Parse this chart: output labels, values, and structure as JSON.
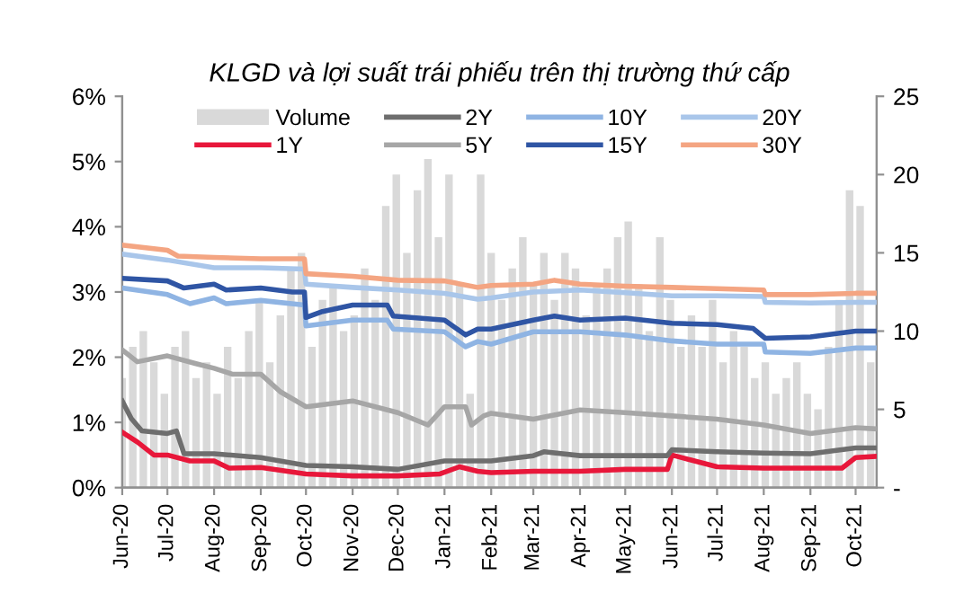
{
  "chart_data": {
    "type": "line",
    "title": "KLGD và lợi suất trái phiếu trên thị trường thứ cấp",
    "ylim": [
      0,
      6
    ],
    "yticks": [
      {
        "value": 0,
        "label": "0%"
      },
      {
        "value": 1,
        "label": "1%"
      },
      {
        "value": 2,
        "label": "2%"
      },
      {
        "value": 3,
        "label": "3%"
      },
      {
        "value": 4,
        "label": "4%"
      },
      {
        "value": 5,
        "label": "5%"
      },
      {
        "value": 6,
        "label": "6%"
      }
    ],
    "y2lim": [
      0,
      25
    ],
    "y2ticks": [
      {
        "value": 0,
        "label": "-"
      },
      5,
      10,
      15,
      20,
      25
    ],
    "xlim": [
      "2020-06-01",
      "2021-10-15"
    ],
    "xticks": [
      {
        "value": "2020-06-01",
        "label": "Jun-20"
      },
      {
        "value": "2020-07-01",
        "label": "Jul-20"
      },
      {
        "value": "2020-08-01",
        "label": "Aug-20"
      },
      {
        "value": "2020-09-01",
        "label": "Sep-20"
      },
      {
        "value": "2020-10-01",
        "label": "Oct-20"
      },
      {
        "value": "2020-11-01",
        "label": "Nov-20"
      },
      {
        "value": "2020-12-01",
        "label": "Dec-20"
      },
      {
        "value": "2021-01-01",
        "label": "Jan-21"
      },
      {
        "value": "2021-02-01",
        "label": "Feb-21"
      },
      {
        "value": "2021-03-01",
        "label": "Mar-21"
      },
      {
        "value": "2021-04-01",
        "label": "Apr-21"
      },
      {
        "value": "2021-05-01",
        "label": "May-21"
      },
      {
        "value": "2021-06-01",
        "label": "Jun-21"
      },
      {
        "value": "2021-07-01",
        "label": "Jul-21"
      },
      {
        "value": "2021-08-01",
        "label": "Aug-21"
      },
      {
        "value": "2021-09-01",
        "label": "Sep-21"
      },
      {
        "value": "2021-10-01",
        "label": "Oct-21"
      }
    ],
    "legend": "top",
    "grid": false,
    "marker": "none",
    "line_style": "solid",
    "series": [
      {
        "name": "Volume",
        "type": "bar",
        "axis": "y2",
        "color": "#d9d9d9",
        "x": [
          "2020-06-01",
          "2020-06-08",
          "2020-06-15",
          "2020-06-22",
          "2020-06-29",
          "2020-07-06",
          "2020-07-13",
          "2020-07-20",
          "2020-07-27",
          "2020-08-03",
          "2020-08-10",
          "2020-08-17",
          "2020-08-24",
          "2020-08-31",
          "2020-09-07",
          "2020-09-14",
          "2020-09-21",
          "2020-09-28",
          "2020-10-05",
          "2020-10-12",
          "2020-10-19",
          "2020-10-26",
          "2020-11-02",
          "2020-11-09",
          "2020-11-16",
          "2020-11-23",
          "2020-11-30",
          "2020-12-07",
          "2020-12-14",
          "2020-12-21",
          "2020-12-28",
          "2021-01-04",
          "2021-01-11",
          "2021-01-18",
          "2021-01-25",
          "2021-02-01",
          "2021-02-08",
          "2021-02-15",
          "2021-02-22",
          "2021-03-01",
          "2021-03-08",
          "2021-03-15",
          "2021-03-22",
          "2021-03-29",
          "2021-04-05",
          "2021-04-12",
          "2021-04-19",
          "2021-04-26",
          "2021-05-03",
          "2021-05-10",
          "2021-05-17",
          "2021-05-24",
          "2021-05-31",
          "2021-06-07",
          "2021-06-14",
          "2021-06-21",
          "2021-06-28",
          "2021-07-05",
          "2021-07-12",
          "2021-07-19",
          "2021-07-26",
          "2021-08-02",
          "2021-08-09",
          "2021-08-16",
          "2021-08-23",
          "2021-08-30",
          "2021-09-06",
          "2021-09-13",
          "2021-09-20",
          "2021-09-27",
          "2021-10-04",
          "2021-10-11"
        ],
        "values": [
          7,
          9,
          10,
          8,
          6,
          9,
          10,
          7,
          8,
          6,
          9,
          7,
          10,
          12,
          8,
          11,
          14,
          15,
          9,
          12,
          13,
          10,
          11,
          14,
          12,
          18,
          20,
          15,
          19,
          21,
          16,
          20,
          13,
          6,
          20,
          15,
          12,
          14,
          16,
          13,
          15,
          12,
          15,
          14,
          11,
          13,
          14,
          16,
          17,
          13,
          10,
          16,
          12,
          9,
          11,
          9,
          12,
          8,
          10,
          9,
          7,
          8,
          6,
          7,
          8,
          6,
          5,
          9,
          12,
          19,
          18,
          8
        ]
      },
      {
        "name": "1Y",
        "color": "#e8173a",
        "x": [
          "2020-06-01",
          "2020-06-11",
          "2020-06-22",
          "2020-07-01",
          "2020-07-16",
          "2020-08-01",
          "2020-08-11",
          "2020-09-01",
          "2020-10-01",
          "2020-11-01",
          "2020-12-01",
          "2020-12-29",
          "2021-01-11",
          "2021-01-23",
          "2021-02-01",
          "2021-03-01",
          "2021-04-01",
          "2021-05-01",
          "2021-05-29",
          "2021-06-01",
          "2021-07-01",
          "2021-08-01",
          "2021-09-01",
          "2021-09-22",
          "2021-10-01",
          "2021-10-15"
        ],
        "values": [
          0.85,
          0.7,
          0.5,
          0.5,
          0.41,
          0.41,
          0.3,
          0.31,
          0.21,
          0.18,
          0.18,
          0.21,
          0.32,
          0.25,
          0.23,
          0.25,
          0.25,
          0.28,
          0.28,
          0.5,
          0.32,
          0.3,
          0.3,
          0.3,
          0.46,
          0.48
        ]
      },
      {
        "name": "2Y",
        "color": "#6e6e6e",
        "x": [
          "2020-06-01",
          "2020-06-07",
          "2020-06-14",
          "2020-07-01",
          "2020-07-07",
          "2020-07-12",
          "2020-08-01",
          "2020-09-01",
          "2020-10-01",
          "2020-11-01",
          "2020-12-01",
          "2021-01-01",
          "2021-01-23",
          "2021-02-01",
          "2021-03-01",
          "2021-03-08",
          "2021-04-01",
          "2021-05-01",
          "2021-05-29",
          "2021-06-01",
          "2021-07-01",
          "2021-08-01",
          "2021-09-01",
          "2021-10-01",
          "2021-10-15"
        ],
        "values": [
          1.33,
          1.06,
          0.87,
          0.83,
          0.87,
          0.52,
          0.52,
          0.46,
          0.34,
          0.32,
          0.28,
          0.41,
          0.41,
          0.41,
          0.49,
          0.55,
          0.49,
          0.49,
          0.49,
          0.58,
          0.55,
          0.53,
          0.52,
          0.61,
          0.61
        ]
      },
      {
        "name": "5Y",
        "color": "#a6a6a6",
        "x": [
          "2020-06-01",
          "2020-06-11",
          "2020-07-01",
          "2020-07-20",
          "2020-08-01",
          "2020-08-13",
          "2020-09-01",
          "2020-09-14",
          "2020-10-01",
          "2020-11-01",
          "2020-12-01",
          "2020-12-21",
          "2021-01-01",
          "2021-01-15",
          "2021-01-19",
          "2021-01-27",
          "2021-02-01",
          "2021-03-01",
          "2021-04-01",
          "2021-05-01",
          "2021-06-01",
          "2021-07-01",
          "2021-08-01",
          "2021-09-01",
          "2021-10-01",
          "2021-10-15"
        ],
        "values": [
          2.11,
          1.93,
          2.02,
          1.9,
          1.83,
          1.74,
          1.74,
          1.47,
          1.24,
          1.33,
          1.15,
          0.96,
          1.24,
          1.24,
          0.96,
          1.1,
          1.14,
          1.05,
          1.19,
          1.15,
          1.1,
          1.05,
          0.96,
          0.83,
          0.92,
          0.9
        ]
      },
      {
        "name": "10Y",
        "color": "#8fb4e3",
        "x": [
          "2020-06-01",
          "2020-07-01",
          "2020-07-16",
          "2020-08-01",
          "2020-08-09",
          "2020-09-01",
          "2020-09-30",
          "2020-10-01",
          "2020-11-01",
          "2020-11-24",
          "2020-11-28",
          "2021-01-01",
          "2021-01-15",
          "2021-01-23",
          "2021-02-01",
          "2021-03-01",
          "2021-04-01",
          "2021-05-01",
          "2021-06-01",
          "2021-07-01",
          "2021-08-01",
          "2021-08-02",
          "2021-09-01",
          "2021-10-01",
          "2021-10-15"
        ],
        "values": [
          3.06,
          2.96,
          2.82,
          2.91,
          2.82,
          2.87,
          2.8,
          2.48,
          2.57,
          2.57,
          2.43,
          2.39,
          2.16,
          2.24,
          2.2,
          2.39,
          2.39,
          2.34,
          2.25,
          2.2,
          2.2,
          2.08,
          2.06,
          2.14,
          2.14
        ]
      },
      {
        "name": "15Y",
        "color": "#2f55a4",
        "x": [
          "2020-06-01",
          "2020-07-01",
          "2020-07-12",
          "2020-08-01",
          "2020-08-09",
          "2020-09-01",
          "2020-09-22",
          "2020-09-30",
          "2020-10-01",
          "2020-10-12",
          "2020-11-01",
          "2020-11-24",
          "2020-11-28",
          "2021-01-01",
          "2021-01-15",
          "2021-01-23",
          "2021-02-01",
          "2021-03-01",
          "2021-03-15",
          "2021-04-01",
          "2021-05-01",
          "2021-06-01",
          "2021-07-01",
          "2021-07-25",
          "2021-08-02",
          "2021-09-01",
          "2021-10-01",
          "2021-10-15"
        ],
        "values": [
          3.21,
          3.17,
          3.06,
          3.12,
          3.03,
          3.06,
          3.0,
          3.0,
          2.61,
          2.7,
          2.8,
          2.8,
          2.63,
          2.57,
          2.34,
          2.43,
          2.43,
          2.57,
          2.63,
          2.57,
          2.6,
          2.52,
          2.5,
          2.44,
          2.29,
          2.31,
          2.4,
          2.4
        ]
      },
      {
        "name": "20Y",
        "color": "#a9c6ea",
        "x": [
          "2020-06-01",
          "2020-07-01",
          "2020-08-01",
          "2020-09-01",
          "2020-09-30",
          "2020-10-01",
          "2020-11-01",
          "2020-12-01",
          "2021-01-01",
          "2021-01-23",
          "2021-02-01",
          "2021-03-01",
          "2021-04-01",
          "2021-05-01",
          "2021-06-01",
          "2021-07-01",
          "2021-08-01",
          "2021-08-02",
          "2021-09-01",
          "2021-10-01",
          "2021-10-15"
        ],
        "values": [
          3.58,
          3.49,
          3.37,
          3.37,
          3.35,
          3.12,
          3.07,
          3.03,
          2.98,
          2.89,
          2.91,
          3.0,
          3.03,
          2.99,
          2.94,
          2.94,
          2.93,
          2.84,
          2.83,
          2.84,
          2.84
        ]
      },
      {
        "name": "30Y",
        "color": "#f4a582",
        "x": [
          "2020-06-01",
          "2020-07-01",
          "2020-07-08",
          "2020-08-01",
          "2020-09-01",
          "2020-09-30",
          "2020-10-01",
          "2020-11-01",
          "2020-12-01",
          "2021-01-01",
          "2021-01-23",
          "2021-02-01",
          "2021-03-01",
          "2021-03-15",
          "2021-04-01",
          "2021-05-01",
          "2021-06-01",
          "2021-07-01",
          "2021-08-01",
          "2021-08-02",
          "2021-09-01",
          "2021-10-01",
          "2021-10-15"
        ],
        "values": [
          3.72,
          3.64,
          3.55,
          3.53,
          3.51,
          3.51,
          3.28,
          3.24,
          3.18,
          3.17,
          3.07,
          3.1,
          3.12,
          3.18,
          3.12,
          3.09,
          3.07,
          3.05,
          3.03,
          2.96,
          2.96,
          2.98,
          2.98
        ]
      }
    ]
  }
}
